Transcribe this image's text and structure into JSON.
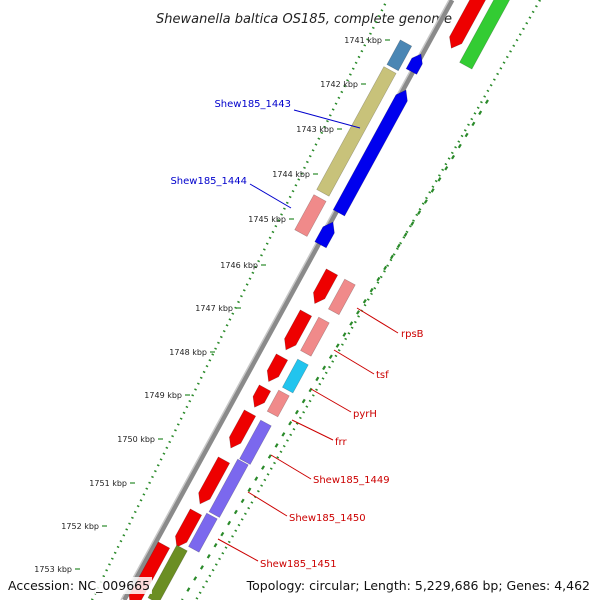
{
  "title": "Shewanella baltica OS185, complete genome",
  "footer": {
    "accession": "Accession: NC_009665",
    "topology": "Topology: circular; Length: 5,229,686 bp; Genes: 4,462"
  },
  "ticks": [
    {
      "label": "1741 kbp"
    },
    {
      "label": "1742 kbp"
    },
    {
      "label": "1743 kbp"
    },
    {
      "label": "1744 kbp"
    },
    {
      "label": "1745 kbp"
    },
    {
      "label": "1746 kbp"
    },
    {
      "label": "1747 kbp"
    },
    {
      "label": "1748 kbp"
    },
    {
      "label": "1749 kbp"
    },
    {
      "label": "1750 kbp"
    },
    {
      "label": "1751 kbp"
    },
    {
      "label": "1752 kbp"
    },
    {
      "label": "1753 kbp"
    }
  ],
  "gene_labels": [
    {
      "text": "Shew185_1443",
      "color": "#0000cc"
    },
    {
      "text": "Shew185_1444",
      "color": "#0000cc"
    },
    {
      "text": "rpsB",
      "color": "#cc0000"
    },
    {
      "text": "tsf",
      "color": "#cc0000"
    },
    {
      "text": "pyrH",
      "color": "#cc0000"
    },
    {
      "text": "frr",
      "color": "#cc0000"
    },
    {
      "text": "Shew185_1449",
      "color": "#cc0000"
    },
    {
      "text": "Shew185_1450",
      "color": "#cc0000"
    },
    {
      "text": "Shew185_1451",
      "color": "#cc0000"
    }
  ],
  "colors": {
    "backbone": "#8a8a8a",
    "tick_dots": "#2a8a2a",
    "cds_red": "#ee0000",
    "cds_blue": "#0000ee",
    "light_red": "#f08a8a",
    "olive": "#c8c27a",
    "steel_blue": "#4a86b4",
    "cyan": "#22c4ee",
    "purple": "#7b68ee",
    "green": "#33cc33",
    "dark_olive": "#6b8e23"
  }
}
